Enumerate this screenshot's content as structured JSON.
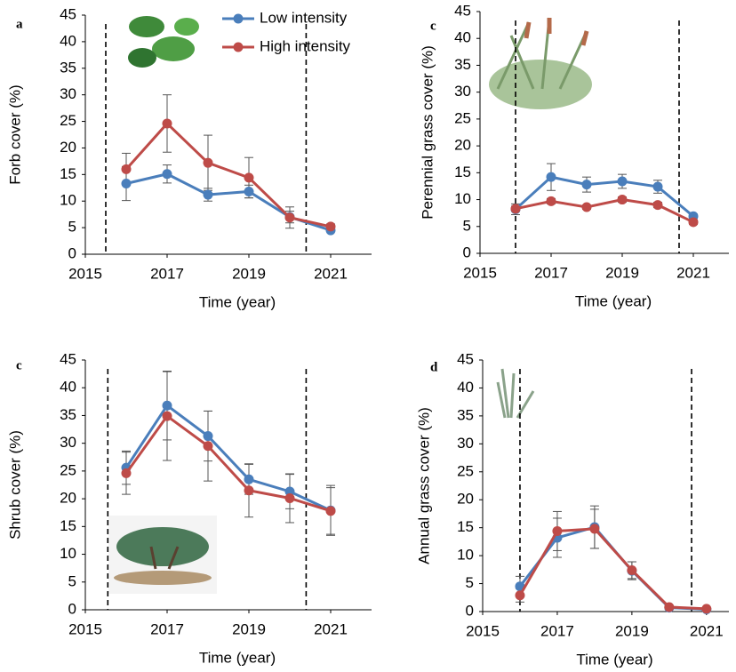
{
  "chart_data": [
    {
      "type": "line",
      "panel": "a",
      "ylabel": "Forb cover (%)",
      "xlabel": "Time (year)",
      "x": [
        2016,
        2017,
        2018,
        2019,
        2020,
        2021
      ],
      "xlim": [
        2015,
        2022
      ],
      "xticks": [
        2015,
        2017,
        2019,
        2021
      ],
      "ylim": [
        0,
        45
      ],
      "yticks": [
        0,
        5,
        10,
        15,
        20,
        25,
        30,
        35,
        40,
        45
      ],
      "vlines": [
        2015.5,
        2020.4
      ],
      "legend": "top-right",
      "series": [
        {
          "name": "Low intensity",
          "color": "#4a7ebb",
          "values": [
            13.3,
            15.1,
            11.2,
            11.8,
            7.0,
            4.5
          ],
          "errors": [
            3.2,
            1.7,
            1.2,
            1.2,
            1.1,
            0.3
          ]
        },
        {
          "name": "High intensity",
          "color": "#be4b48",
          "values": [
            16.0,
            24.6,
            17.2,
            14.4,
            6.9,
            5.2
          ],
          "errors": [
            3.0,
            5.4,
            5.2,
            3.8,
            2.0,
            0.5
          ]
        }
      ]
    },
    {
      "type": "line",
      "panel": "c",
      "ylabel": "Perennial grass cover (%)",
      "xlabel": "Time (year)",
      "x": [
        2016,
        2017,
        2018,
        2019,
        2020,
        2021
      ],
      "xlim": [
        2015,
        2022
      ],
      "xticks": [
        2015,
        2017,
        2019,
        2021
      ],
      "ylim": [
        0,
        45
      ],
      "yticks": [
        0,
        5,
        10,
        15,
        20,
        25,
        30,
        35,
        40,
        45
      ],
      "vlines": [
        2016,
        2020.6
      ],
      "series": [
        {
          "color": "#4a7ebb",
          "values": [
            8.2,
            14.2,
            12.8,
            13.4,
            12.4,
            6.9
          ],
          "errors": [
            1.0,
            2.5,
            1.4,
            1.3,
            1.2,
            0.4
          ]
        },
        {
          "color": "#be4b48",
          "values": [
            8.3,
            9.7,
            8.6,
            10.0,
            9.0,
            5.8
          ],
          "errors": [
            0.5,
            0.5,
            0.4,
            0.5,
            0.5,
            0.4
          ]
        }
      ]
    },
    {
      "type": "line",
      "panel": "c",
      "ylabel": "Shrub cover (%)",
      "xlabel": "Time (year)",
      "x": [
        2016,
        2017,
        2018,
        2019,
        2020,
        2021
      ],
      "xlim": [
        2015,
        2022
      ],
      "xticks": [
        2015,
        2017,
        2019,
        2021
      ],
      "ylim": [
        0,
        45
      ],
      "yticks": [
        0,
        5,
        10,
        15,
        20,
        25,
        30,
        35,
        40,
        45
      ],
      "vlines": [
        2015.55,
        2020.4
      ],
      "series": [
        {
          "color": "#4a7ebb",
          "values": [
            25.6,
            36.8,
            31.3,
            23.5,
            21.3,
            17.9
          ],
          "errors": [
            3.0,
            6.2,
            4.5,
            2.7,
            3.1,
            4.5
          ]
        },
        {
          "color": "#be4b48",
          "values": [
            24.6,
            34.9,
            29.5,
            21.5,
            20.1,
            17.8
          ],
          "errors": [
            3.8,
            8.0,
            6.3,
            4.8,
            4.4,
            4.2
          ]
        }
      ]
    },
    {
      "type": "line",
      "panel": "d",
      "ylabel": "Annual grass cover (%)",
      "xlabel": "Time (year)",
      "x": [
        2016,
        2017,
        2018,
        2019,
        2020,
        2021
      ],
      "xlim": [
        2015,
        2021.6
      ],
      "xticks": [
        2015,
        2017,
        2019,
        2021
      ],
      "ylim": [
        0,
        45
      ],
      "yticks": [
        0,
        5,
        10,
        15,
        20,
        25,
        30,
        35,
        40,
        45
      ],
      "vlines": [
        2016,
        2020.6
      ],
      "series": [
        {
          "color": "#4a7ebb",
          "values": [
            4.5,
            13.2,
            15.1,
            7.3,
            0.7,
            0.4
          ],
          "errors": [
            1.8,
            3.5,
            3.8,
            1.6,
            0.3,
            0.2
          ]
        },
        {
          "color": "#be4b48",
          "values": [
            2.9,
            14.4,
            14.8,
            7.4,
            0.8,
            0.5
          ],
          "errors": [
            1.2,
            3.5,
            3.5,
            1.5,
            0.3,
            0.2
          ]
        }
      ]
    }
  ]
}
